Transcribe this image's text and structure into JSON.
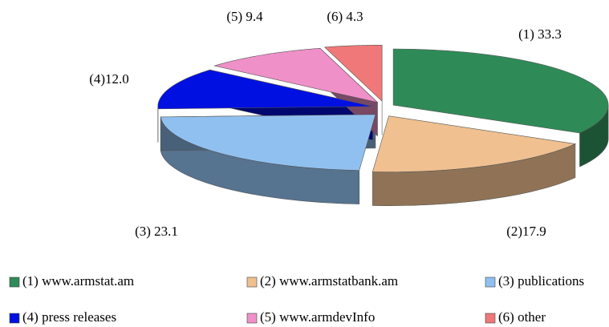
{
  "chart_data": {
    "type": "pie",
    "categories": [
      "(1) www.armstat.am",
      "(2) www.armstatbank.am",
      "(3) publications",
      "(4) press releases",
      "(5) www.armdevInfo",
      "(6) other"
    ],
    "values": [
      33.3,
      17.9,
      23.1,
      12.0,
      9.4,
      4.3
    ],
    "value_labels": [
      "(1) 33.3",
      "(2)17.9",
      "(3) 23.1",
      "(4)12.0",
      "(5) 9.4",
      "(6) 4.3"
    ],
    "colors": [
      "#2e8b57",
      "#f0c090",
      "#90c0f0",
      "#0010e0",
      "#f090c8",
      "#f07878"
    ],
    "legend": "bottom"
  }
}
